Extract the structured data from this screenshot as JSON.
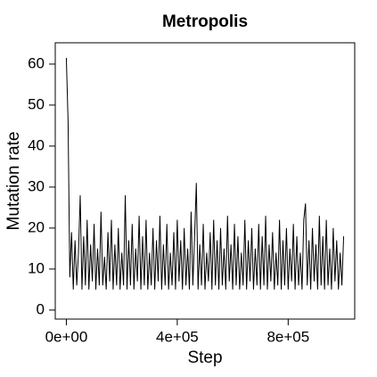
{
  "chart_data": {
    "type": "line",
    "title": "Metropolis",
    "x_label": "Step",
    "y_label": "Mutation rate",
    "color": "#000000",
    "xlim": [
      -40000,
      1040000
    ],
    "ylim": [
      -2.2,
      65.2
    ],
    "xticks": [
      {
        "value": 0,
        "label": "0e+00"
      },
      {
        "value": 400000,
        "label": "4e+05"
      },
      {
        "value": 800000,
        "label": "8e+05"
      }
    ],
    "yticks": [
      0,
      10,
      20,
      30,
      40,
      50,
      60
    ],
    "x": [
      0,
      6250,
      12500,
      18750,
      25000,
      31250,
      37500,
      43750,
      50000,
      56250,
      62500,
      68750,
      75000,
      81250,
      87500,
      93750,
      100000,
      106250,
      112500,
      118750,
      125000,
      131250,
      137500,
      143750,
      150000,
      156250,
      162500,
      168750,
      175000,
      181250,
      187500,
      193750,
      200000,
      206250,
      212500,
      218750,
      225000,
      231250,
      237500,
      243750,
      250000,
      256250,
      262500,
      268750,
      275000,
      281250,
      287500,
      293750,
      300000,
      306250,
      312500,
      318750,
      325000,
      331250,
      337500,
      343750,
      350000,
      356250,
      362500,
      368750,
      375000,
      381250,
      387500,
      393750,
      400000,
      406250,
      412500,
      418750,
      425000,
      431250,
      437500,
      443750,
      450000,
      456250,
      462500,
      468750,
      475000,
      481250,
      487500,
      493750,
      500000,
      506250,
      512500,
      518750,
      525000,
      531250,
      537500,
      543750,
      550000,
      556250,
      562500,
      568750,
      575000,
      581250,
      587500,
      593750,
      600000,
      606250,
      612500,
      618750,
      625000,
      631250,
      637500,
      643750,
      650000,
      656250,
      662500,
      668750,
      675000,
      681250,
      687500,
      693750,
      700000,
      706250,
      712500,
      718750,
      725000,
      731250,
      737500,
      743750,
      750000,
      756250,
      762500,
      768750,
      775000,
      781250,
      787500,
      793750,
      800000,
      806250,
      812500,
      818750,
      825000,
      831250,
      837500,
      843750,
      850000,
      856250,
      862500,
      868750,
      875000,
      881250,
      887500,
      893750,
      900000,
      906250,
      912500,
      918750,
      925000,
      931250,
      937500,
      943750,
      950000,
      956250,
      962500,
      968750,
      975000,
      981250,
      987500,
      993750,
      1000000
    ],
    "values": [
      61.5,
      46,
      8,
      19,
      5,
      17,
      6,
      14,
      28,
      5,
      18,
      6,
      22,
      5,
      16,
      7,
      21,
      5,
      15,
      6,
      24,
      6,
      13,
      5,
      19,
      7,
      22,
      5,
      16,
      6,
      20,
      5,
      14,
      6,
      28,
      5,
      17,
      6,
      21,
      5,
      15,
      7,
      23,
      5,
      18,
      6,
      22,
      5,
      14,
      6,
      20,
      5,
      17,
      7,
      23,
      5,
      16,
      6,
      21,
      5,
      14,
      6,
      19,
      5,
      22,
      7,
      17,
      5,
      20,
      6,
      15,
      5,
      24,
      6,
      18,
      31,
      5,
      16,
      6,
      21,
      5,
      14,
      7,
      19,
      5,
      22,
      6,
      17,
      5,
      20,
      6,
      15,
      5,
      23,
      7,
      16,
      5,
      21,
      6,
      18,
      5,
      14,
      6,
      22,
      5,
      17,
      7,
      20,
      5,
      15,
      6,
      21,
      5,
      18,
      6,
      23,
      5,
      16,
      7,
      19,
      5,
      14,
      6,
      22,
      5,
      17,
      6,
      20,
      5,
      15,
      7,
      21,
      5,
      18,
      6,
      14,
      5,
      22,
      26,
      6,
      17,
      5,
      20,
      7,
      16,
      5,
      23,
      6,
      18,
      5,
      22,
      6,
      15,
      5,
      20,
      7,
      17,
      5,
      14,
      6,
      18
    ]
  }
}
